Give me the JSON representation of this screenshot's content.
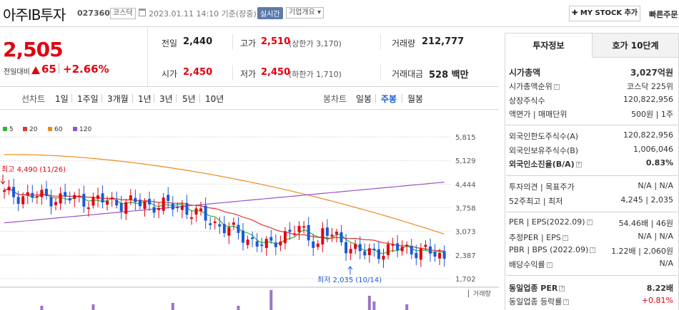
{
  "header": {
    "stock_name": "아주IB투자",
    "stock_code": "027360",
    "market": "코스닥",
    "date_text": "2023.01.11 14:10 기준(장중)",
    "realtime": "실시간",
    "company_info": "기업개요",
    "mystock_btn": "MY STOCK 추가",
    "quick_order": "빠른주문"
  },
  "price": {
    "current": "2,505",
    "change_label": "전일대비",
    "change": "65",
    "change_pct": "+2.66%"
  },
  "stats": {
    "prev_close_label": "전일",
    "prev_close": "2,440",
    "high_label": "고가",
    "high": "2,510",
    "upper_limit": "(상한가 3,170)",
    "volume_label": "거래량",
    "volume": "212,777",
    "open_label": "시가",
    "open": "2,450",
    "low_label": "저가",
    "low": "2,450",
    "lower_limit": "(하한가 1,710)",
    "amount_label": "거래대금",
    "amount": "528 백만"
  },
  "tabs": {
    "line_chart": "선차트",
    "periods": [
      "1일",
      "1주일",
      "3개월",
      "1년",
      "3년",
      "5년",
      "10년"
    ],
    "candle_chart": "봉차트",
    "candle_periods": [
      "일봉",
      "주봉",
      "월봉"
    ],
    "selected_candle": "주봉"
  },
  "chart_data": {
    "type": "candlestick",
    "legend": [
      {
        "name": "5",
        "color": "#2fb32f"
      },
      {
        "name": "20",
        "color": "#e3342f"
      },
      {
        "name": "60",
        "color": "#ef8a1d"
      },
      {
        "name": "120",
        "color": "#9a52c8"
      }
    ],
    "y_ticks": [
      "5,815",
      "5,129",
      "4,444",
      "3,758",
      "3,073",
      "2,387",
      "1,702"
    ],
    "ylim": [
      1702,
      5815
    ],
    "high_annotation": "최고 4,490 (11/26)",
    "low_annotation": "최저 2,035 (10/14)",
    "volume_label": "거래량"
  },
  "right_tabs": {
    "invest": "투자정보",
    "hoga": "호가 10단계"
  },
  "info": {
    "market_cap_label": "시가총액",
    "market_cap": "3,027억원",
    "rank_label": "시가총액순위",
    "rank": "코스닥 225위",
    "shares_label": "상장주식수",
    "shares": "120,822,956",
    "par_label": "액면가 | 매매단위",
    "par": "500원 | 1주",
    "foreign_limit_label": "외국인한도주식수(A)",
    "foreign_limit": "120,822,956",
    "foreign_hold_label": "외국인보유주식수(B)",
    "foreign_hold": "1,006,046",
    "foreign_ratio_label": "외국인소진율(B/A)",
    "foreign_ratio": "0.83%",
    "opinion_label": "투자의견 | 목표주가",
    "opinion": "N/A | N/A",
    "w52_label": "52주최고 | 최저",
    "w52": "4,245 | 2,035",
    "per_label": "PER | EPS(2022.09)",
    "per": "54.46배 | 46원",
    "est_per_label": "추정PER | EPS",
    "est_per": "N/A | N/A",
    "pbr_label": "PBR | BPS (2022.09)",
    "pbr": "1.22배 | 2,060원",
    "div_label": "배당수익률",
    "div": "N/A",
    "ind_per_label": "동일업종 PER",
    "ind_per": "8.22배",
    "ind_rate_label": "동일업종 등락률",
    "ind_rate": "+0.81%"
  }
}
